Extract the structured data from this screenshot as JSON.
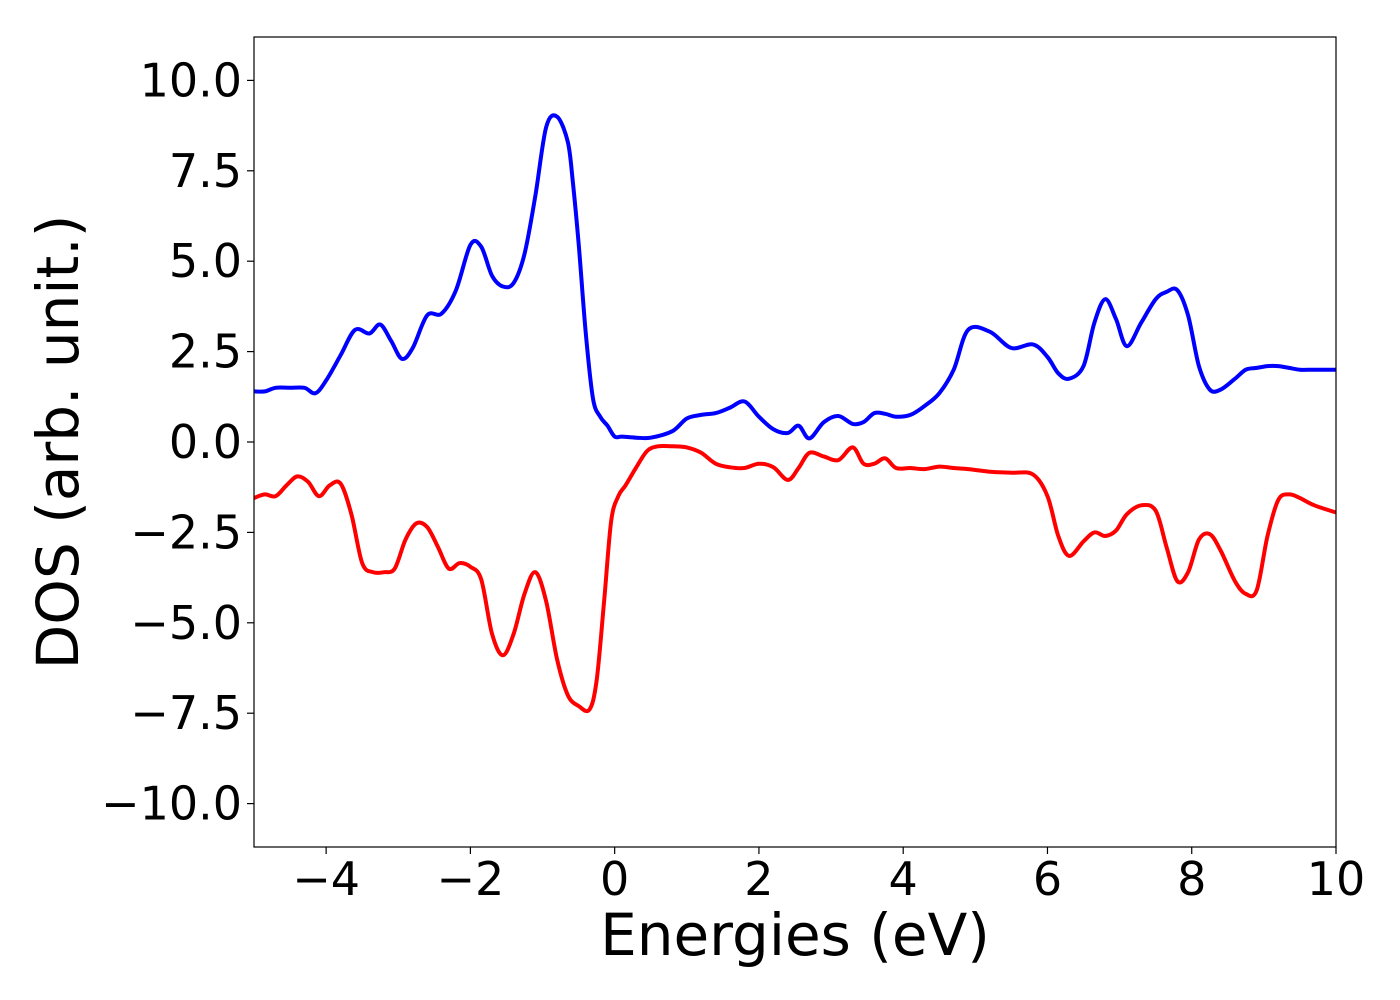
{
  "chart_data": {
    "type": "line",
    "title": "",
    "xlabel": "Energies (eV)",
    "ylabel": "DOS (arb. unit.)",
    "xlim": [
      -5,
      10
    ],
    "ylim": [
      -11.2,
      11.2
    ],
    "xticks": [
      -4,
      -2,
      0,
      2,
      4,
      6,
      8,
      10
    ],
    "xtick_labels": [
      "−4",
      "−2",
      "0",
      "2",
      "4",
      "6",
      "8",
      "10"
    ],
    "yticks": [
      -10,
      -7.5,
      -5,
      -2.5,
      0,
      2.5,
      5,
      7.5,
      10
    ],
    "ytick_labels": [
      "−10.0",
      "−7.5",
      "−5.0",
      "−2.5",
      "0.0",
      "2.5",
      "5.0",
      "7.5",
      "10.0"
    ],
    "grid": false,
    "legend": "none",
    "series": [
      {
        "color": "#0000ff",
        "x": [
          -5.0,
          -4.85,
          -4.7,
          -4.5,
          -4.3,
          -4.15,
          -4.0,
          -3.8,
          -3.6,
          -3.4,
          -3.25,
          -3.1,
          -2.95,
          -2.8,
          -2.6,
          -2.4,
          -2.2,
          -2.0,
          -1.85,
          -1.7,
          -1.55,
          -1.4,
          -1.25,
          -1.1,
          -0.95,
          -0.8,
          -0.65,
          -0.58,
          -0.5,
          -0.4,
          -0.3,
          -0.2,
          -0.1,
          0.0,
          0.1,
          0.3,
          0.5,
          0.8,
          1.0,
          1.2,
          1.4,
          1.6,
          1.8,
          2.0,
          2.2,
          2.4,
          2.55,
          2.7,
          2.9,
          3.1,
          3.3,
          3.45,
          3.6,
          3.75,
          3.9,
          4.1,
          4.3,
          4.5,
          4.7,
          4.9,
          5.2,
          5.5,
          5.8,
          6.0,
          6.15,
          6.3,
          6.5,
          6.65,
          6.8,
          6.95,
          7.1,
          7.3,
          7.5,
          7.65,
          7.8,
          7.95,
          8.1,
          8.25,
          8.4,
          8.6,
          8.75,
          8.9,
          9.05,
          9.2,
          9.35,
          9.5,
          9.7,
          10.0
        ],
        "y": [
          1.4,
          1.4,
          1.5,
          1.5,
          1.5,
          1.35,
          1.7,
          2.4,
          3.1,
          3.0,
          3.25,
          2.8,
          2.3,
          2.6,
          3.5,
          3.55,
          4.2,
          5.45,
          5.4,
          4.6,
          4.3,
          4.4,
          5.2,
          6.8,
          8.7,
          9.0,
          8.3,
          7.2,
          5.5,
          3.0,
          1.2,
          0.7,
          0.45,
          0.15,
          0.15,
          0.12,
          0.12,
          0.3,
          0.65,
          0.75,
          0.8,
          0.95,
          1.12,
          0.7,
          0.35,
          0.25,
          0.45,
          0.1,
          0.55,
          0.72,
          0.5,
          0.55,
          0.8,
          0.78,
          0.7,
          0.75,
          1.0,
          1.35,
          2.0,
          3.1,
          3.05,
          2.6,
          2.7,
          2.35,
          1.9,
          1.75,
          2.1,
          3.3,
          3.95,
          3.4,
          2.65,
          3.3,
          3.95,
          4.15,
          4.2,
          3.5,
          2.1,
          1.45,
          1.45,
          1.75,
          2.0,
          2.05,
          2.1,
          2.1,
          2.05,
          2.0,
          2.0,
          2.0
        ]
      },
      {
        "color": "#ff0000",
        "x": [
          -5.0,
          -4.85,
          -4.7,
          -4.55,
          -4.4,
          -4.25,
          -4.1,
          -3.95,
          -3.8,
          -3.65,
          -3.5,
          -3.35,
          -3.2,
          -3.05,
          -2.9,
          -2.75,
          -2.6,
          -2.45,
          -2.3,
          -2.15,
          -2.0,
          -1.85,
          -1.7,
          -1.55,
          -1.4,
          -1.25,
          -1.1,
          -0.95,
          -0.8,
          -0.65,
          -0.5,
          -0.35,
          -0.25,
          -0.15,
          -0.05,
          0.05,
          0.15,
          0.3,
          0.45,
          0.6,
          0.8,
          1.0,
          1.2,
          1.4,
          1.6,
          1.8,
          2.0,
          2.2,
          2.4,
          2.55,
          2.7,
          2.9,
          3.1,
          3.3,
          3.45,
          3.6,
          3.75,
          3.9,
          4.1,
          4.3,
          4.5,
          4.7,
          4.9,
          5.2,
          5.5,
          5.8,
          6.0,
          6.15,
          6.3,
          6.5,
          6.65,
          6.8,
          6.95,
          7.1,
          7.3,
          7.5,
          7.65,
          7.8,
          7.95,
          8.1,
          8.25,
          8.4,
          8.6,
          8.75,
          8.9,
          9.05,
          9.2,
          9.35,
          9.5,
          9.7,
          10.0
        ],
        "y": [
          -1.55,
          -1.45,
          -1.5,
          -1.2,
          -0.95,
          -1.1,
          -1.5,
          -1.2,
          -1.15,
          -2.0,
          -3.35,
          -3.6,
          -3.6,
          -3.5,
          -2.7,
          -2.25,
          -2.35,
          -2.9,
          -3.5,
          -3.35,
          -3.45,
          -3.8,
          -5.3,
          -5.9,
          -5.3,
          -4.2,
          -3.6,
          -4.4,
          -6.0,
          -7.0,
          -7.3,
          -7.4,
          -6.6,
          -4.5,
          -2.2,
          -1.5,
          -1.2,
          -0.7,
          -0.25,
          -0.12,
          -0.12,
          -0.15,
          -0.3,
          -0.6,
          -0.7,
          -0.72,
          -0.6,
          -0.7,
          -1.05,
          -0.72,
          -0.3,
          -0.4,
          -0.5,
          -0.15,
          -0.6,
          -0.6,
          -0.45,
          -0.72,
          -0.72,
          -0.75,
          -0.68,
          -0.72,
          -0.75,
          -0.82,
          -0.85,
          -0.9,
          -1.5,
          -2.6,
          -3.15,
          -2.75,
          -2.5,
          -2.6,
          -2.45,
          -2.0,
          -1.75,
          -1.9,
          -2.9,
          -3.85,
          -3.6,
          -2.7,
          -2.55,
          -3.0,
          -3.85,
          -4.2,
          -4.1,
          -2.6,
          -1.6,
          -1.45,
          -1.55,
          -1.75,
          -1.95
        ]
      }
    ]
  }
}
